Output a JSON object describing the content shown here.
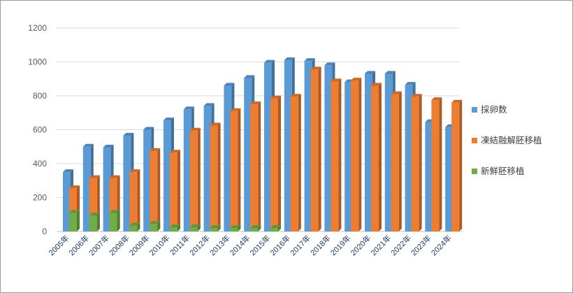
{
  "chart_data": {
    "type": "bar",
    "title": "",
    "xlabel": "",
    "ylabel": "",
    "ylim": [
      0,
      1200
    ],
    "yticks": [
      0,
      200,
      400,
      600,
      800,
      1000,
      1200
    ],
    "grid": true,
    "legend_position": "right",
    "categories": [
      "2005年",
      "2006年",
      "2007年",
      "2008年",
      "2009年",
      "2010年",
      "2011年",
      "2012年",
      "2013年",
      "2014年",
      "2015年",
      "2016年",
      "2017年",
      "2018年",
      "2019年",
      "2020年",
      "2021年",
      "2022年",
      "2023年",
      "2024年"
    ],
    "series": [
      {
        "name": "採卵数",
        "color": "#5b9bd5",
        "values": [
          350,
          500,
          495,
          565,
          600,
          655,
          720,
          740,
          860,
          905,
          995,
          1010,
          1005,
          980,
          880,
          930,
          930,
          865,
          645,
          615
        ]
      },
      {
        "name": "凍結融解胚移植",
        "color": "#ed7d31",
        "values": [
          255,
          315,
          315,
          350,
          475,
          465,
          595,
          625,
          710,
          750,
          785,
          795,
          955,
          885,
          890,
          860,
          810,
          795,
          775,
          760
        ]
      },
      {
        "name": "新鮮胚移植",
        "color": "#70ad47",
        "values": [
          110,
          95,
          110,
          35,
          45,
          25,
          25,
          20,
          20,
          20,
          20,
          0,
          0,
          0,
          0,
          0,
          0,
          0,
          0,
          0
        ]
      }
    ]
  }
}
